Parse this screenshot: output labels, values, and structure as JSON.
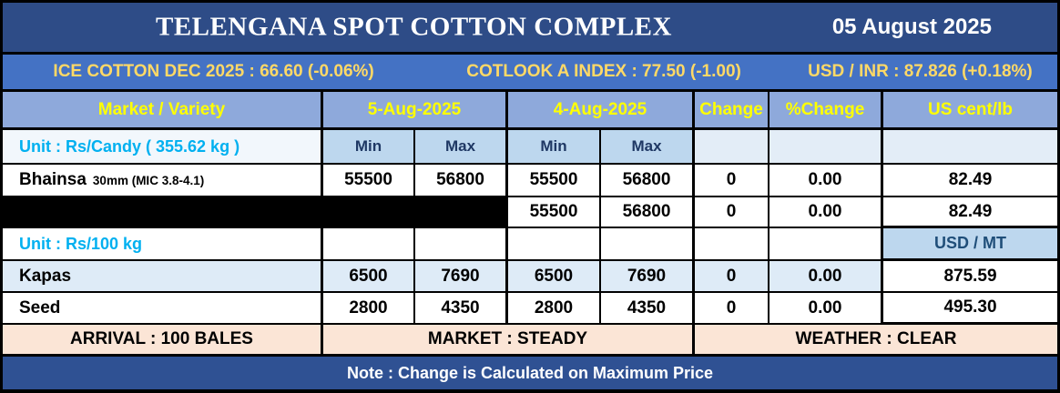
{
  "header": {
    "title": "TELENGANA SPOT COTTON COMPLEX",
    "date": "05 August 2025"
  },
  "ticker": {
    "ice_cotton": "ICE COTTON DEC 2025 : 66.60 (-0.06%)",
    "cotlook": "COTLOOK A INDEX : 77.50 (-1.00)",
    "usd_inr": "USD / INR : 87.826 (+0.18%)"
  },
  "table": {
    "columns": {
      "market": "Market / Variety",
      "day1": "5-Aug-2025",
      "day2": "4-Aug-2025",
      "change": "Change",
      "pct_change": "%Change",
      "us_cent": "US cent/lb"
    },
    "subheader": {
      "unit_candy": "Unit : Rs/Candy ( 355.62 kg )",
      "min1": "Min",
      "max1": "Max",
      "min2": "Min",
      "max2": "Max"
    },
    "rows": {
      "bhainsa": {
        "name": "Bhainsa",
        "spec": "30mm (MIC 3.8-4.1)",
        "d1min": "55500",
        "d1max": "56800",
        "d2min": "55500",
        "d2max": "56800",
        "change": "0",
        "pct": "0.00",
        "us": "82.49"
      },
      "redacted": {
        "d2min": "55500",
        "d2max": "56800",
        "change": "0",
        "pct": "0.00",
        "us": "82.49"
      },
      "unit100": {
        "label": "Unit : Rs/100 kg",
        "usd_mt": "USD / MT"
      },
      "kapas": {
        "name": "Kapas",
        "d1min": "6500",
        "d1max": "7690",
        "d2min": "6500",
        "d2max": "7690",
        "change": "0",
        "pct": "0.00",
        "us": "875.59"
      },
      "seed": {
        "name": "Seed",
        "d1min": "2800",
        "d1max": "4350",
        "d2min": "2800",
        "d2max": "4350",
        "change": "0",
        "pct": "0.00",
        "us": "495.30"
      }
    }
  },
  "status": {
    "arrival": "ARRIVAL : 100 BALES",
    "market": "MARKET : STEADY",
    "weather": "WEATHER : CLEAR"
  },
  "footer": {
    "note": "Note : Change is Calculated on Maximum Price"
  },
  "colors": {
    "title_bar": "#2e4c87",
    "ticker_bar": "#4472c4",
    "ticker_text": "#ffd966",
    "header_row": "#8ea9db",
    "header_text": "#ffff00",
    "minmax_bg": "#bdd7ee",
    "minmax_text": "#1f3864",
    "unit_text": "#00b0f0",
    "row_tint": "#deebf7",
    "status_bg": "#fbe5d6",
    "footer_bar": "#2f5193",
    "redacted": "#000000"
  }
}
